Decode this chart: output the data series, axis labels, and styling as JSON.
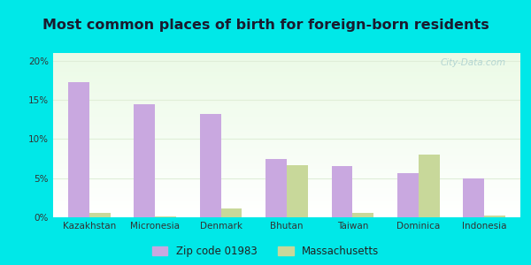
{
  "title": "Most common places of birth for foreign-born residents",
  "categories": [
    "Kazakhstan",
    "Micronesia",
    "Denmark",
    "Bhutan",
    "Taiwan",
    "Dominica",
    "Indonesia"
  ],
  "zip_values": [
    17.3,
    14.5,
    13.2,
    7.5,
    6.5,
    5.7,
    5.0
  ],
  "ma_values": [
    0.6,
    0.1,
    1.1,
    6.7,
    0.6,
    8.0,
    0.2
  ],
  "zip_color": "#c9a8e0",
  "ma_color": "#c8d89a",
  "background_outer": "#00e8e8",
  "background_inner_top": "#d8f0d0",
  "background_inner_bottom": "#f5fdf0",
  "ylim": [
    0,
    21
  ],
  "yticks": [
    0,
    5,
    10,
    15,
    20
  ],
  "ytick_labels": [
    "0%",
    "5%",
    "10%",
    "15%",
    "20%"
  ],
  "legend_zip": "Zip code 01983",
  "legend_ma": "Massachusetts",
  "title_fontsize": 11.5,
  "tick_fontsize": 7.5,
  "legend_fontsize": 8.5,
  "watermark": "City-Data.com",
  "grid_color": "#e0eed8",
  "bar_width": 0.32
}
